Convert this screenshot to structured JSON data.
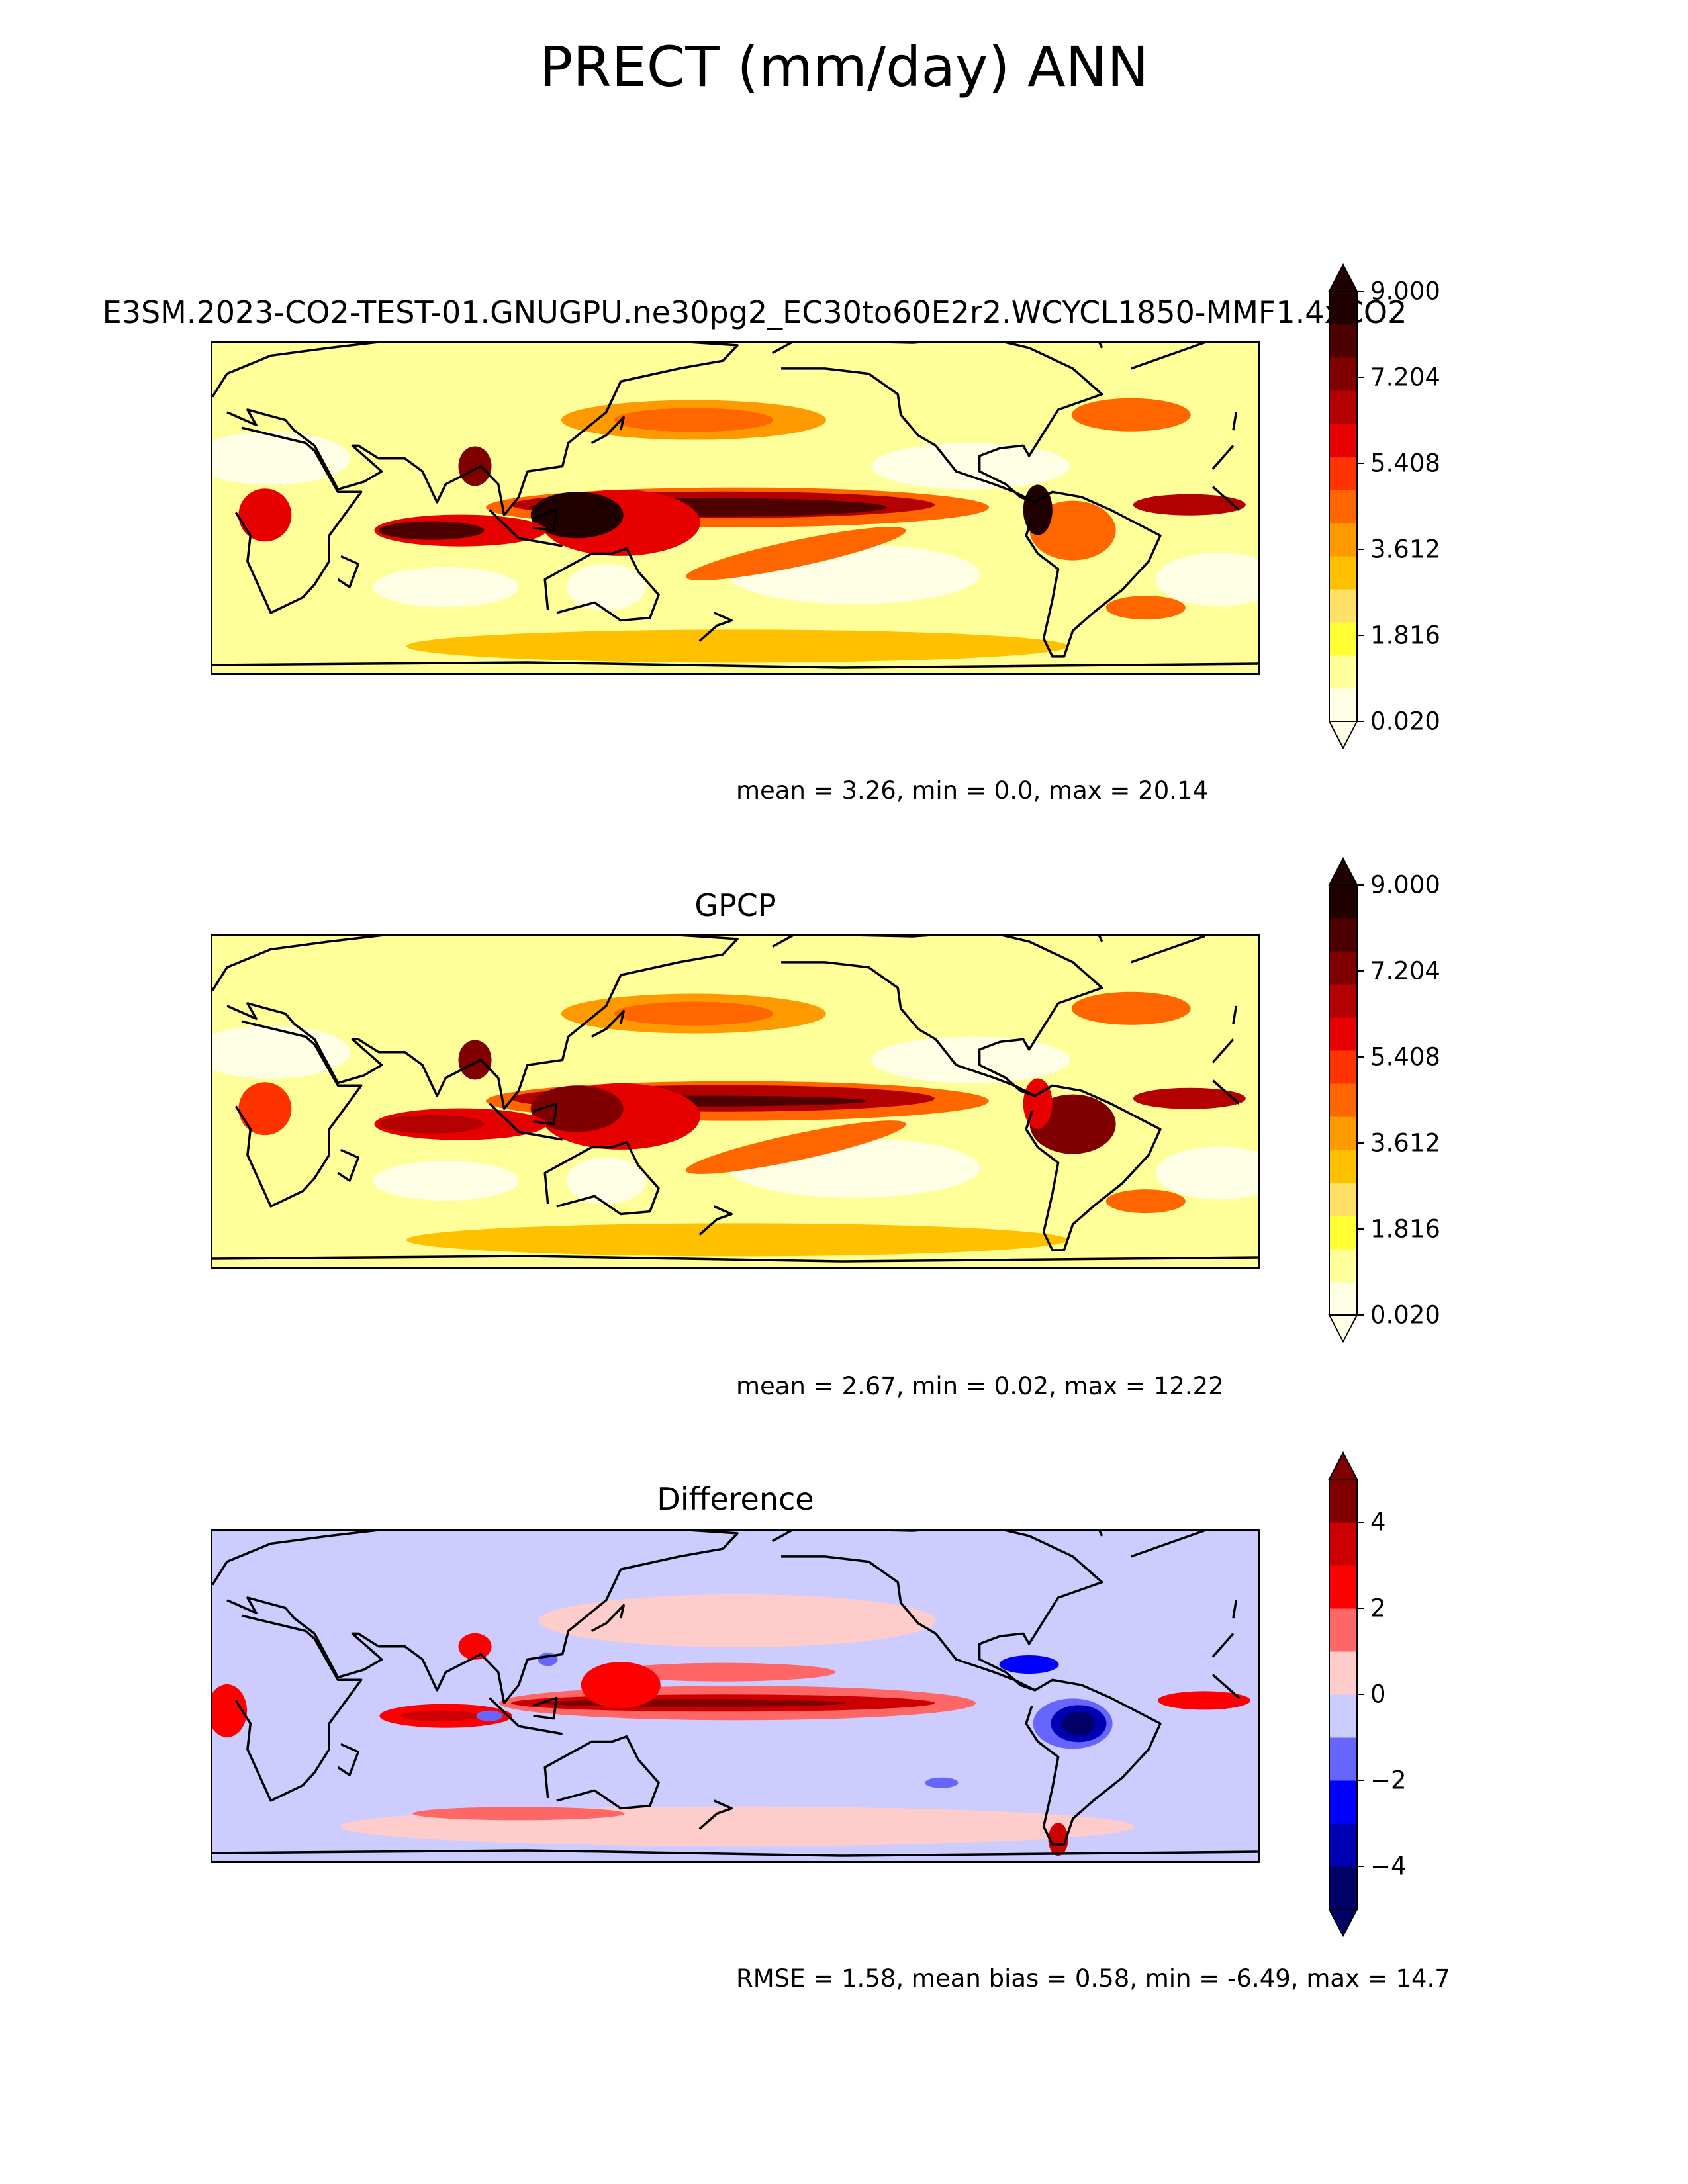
{
  "title": "PRECT (mm/day) ANN",
  "colors": {
    "precip_levels": [
      "#ffffe6",
      "#ffff99",
      "#ffff33",
      "#ffe066",
      "#ffc000",
      "#ff9900",
      "#ff6600",
      "#ff3300",
      "#e60000",
      "#b30000",
      "#800000",
      "#4d0000",
      "#200000"
    ],
    "diff_levels": [
      "#000066",
      "#0000b3",
      "#0000ff",
      "#6666ff",
      "#ccccff",
      "#ffcccc",
      "#ff6666",
      "#ff0000",
      "#cc0000",
      "#800000"
    ],
    "coast": "#000000"
  },
  "chart_data": [
    {
      "type": "heatmap",
      "title": "E3SM.2023-CO2-TEST-01.GNUGPU.ne30pg2_EC30to60E2r2.WCYCL1850-MMF1.4xCO2",
      "colorbar": {
        "ticks": [
          "9.000",
          "7.204",
          "5.408",
          "3.612",
          "1.816",
          "0.020"
        ],
        "min": 0.02,
        "max": 9.0,
        "extend": "both"
      },
      "stats": "mean = 3.26, min = 0.0, max = 20.14",
      "features": [
        "strong ITCZ across Pacific and Indian Ocean",
        "maxima over Maritime Continent",
        "dry subtropical eastern oceans"
      ]
    },
    {
      "type": "heatmap",
      "title": "GPCP",
      "colorbar": {
        "ticks": [
          "9.000",
          "7.204",
          "5.408",
          "3.612",
          "1.816",
          "0.020"
        ],
        "min": 0.02,
        "max": 9.0,
        "extend": "both"
      },
      "stats": "mean = 2.67, min = 0.02, max = 12.22",
      "features": [
        "ITCZ along ~8N in Pacific",
        "SPCZ",
        "Amazon and Maritime Continent maxima"
      ]
    },
    {
      "type": "heatmap",
      "title": "Difference",
      "colorbar": {
        "ticks": [
          "4",
          "2",
          "0",
          "−2",
          "−4"
        ],
        "min": -5,
        "max": 5,
        "extend": "both"
      },
      "stats": "RMSE = 1.58, mean bias = 0.58, min = -6.49, max = 14.7",
      "features": [
        "positive bias along tropical Pacific",
        "strong negative bias over Amazon",
        "negative over Central America"
      ]
    }
  ]
}
